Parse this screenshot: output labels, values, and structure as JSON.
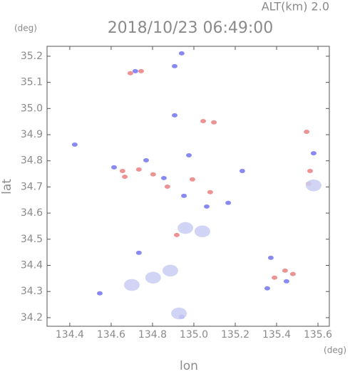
{
  "chart_data": {
    "type": "scatter",
    "title": "2018/10/23 06:49:00",
    "subtitle": "ALT(km) 2.0",
    "x_label": "lon",
    "y_label": "lat",
    "x_unit": "(deg)",
    "y_unit": "(deg)",
    "xlim": [
      134.29,
      135.655
    ],
    "ylim": [
      34.167,
      35.238
    ],
    "xticks": [
      134.4,
      134.6,
      134.8,
      {
        "value": 135.0,
        "label": "135.0"
      },
      135.2,
      135.4,
      135.6
    ],
    "yticks": [
      34.2,
      34.3,
      34.4,
      34.5,
      34.6,
      34.7,
      34.8,
      34.9,
      {
        "value": 35.0,
        "label": "35.0"
      },
      35.1,
      35.2
    ],
    "series": [
      {
        "color": "#e98080",
        "x": [
          134.693,
          134.745,
          135.045,
          135.097,
          135.545,
          135.562,
          135.555,
          134.655,
          134.734,
          134.803,
          134.872,
          134.993,
          134.917,
          135.441,
          135.39,
          135.479,
          135.079,
          134.666
        ],
        "values": [
          35.135,
          35.143,
          34.952,
          34.947,
          34.911,
          34.761,
          34.712,
          34.761,
          34.767,
          34.748,
          34.701,
          34.729,
          34.516,
          34.38,
          34.353,
          34.367,
          34.68,
          34.739
        ]
      },
      {
        "color": "#7474f0",
        "x": [
          134.717,
          134.907,
          134.941,
          134.907,
          134.976,
          134.614,
          134.769,
          134.855,
          134.952,
          135.062,
          135.166,
          135.579,
          135.372,
          135.355,
          135.448,
          134.734,
          134.424,
          134.545,
          135.234,
          134.941
        ],
        "values": [
          35.143,
          35.162,
          35.211,
          34.974,
          34.821,
          34.775,
          34.802,
          34.734,
          34.666,
          34.625,
          34.639,
          34.829,
          34.429,
          34.312,
          34.339,
          34.448,
          34.862,
          34.293,
          34.761,
          34.203
        ]
      },
      {
        "color": "#c9ccf2",
        "x": [
          134.803,
          134.7,
          134.886,
          135.041,
          134.928,
          134.959,
          135.579
        ],
        "values": [
          34.353,
          34.325,
          34.38,
          34.53,
          34.216,
          34.543,
          34.706
        ]
      }
    ]
  }
}
